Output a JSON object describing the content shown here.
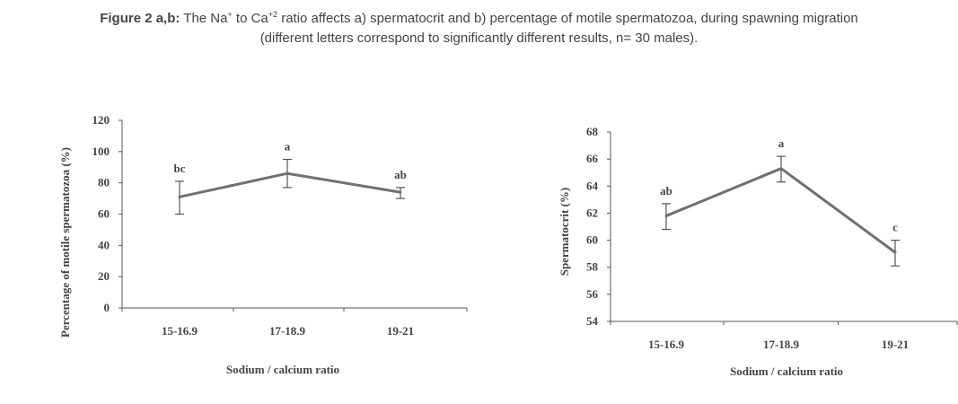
{
  "caption": {
    "label": "Figure 2 a,b:",
    "part1": " The Na",
    "sup1": "+",
    "part2": " to Ca",
    "sup2": "+2",
    "part3": " ratio affects a) spermatocrit and b) percentage of motile spermatozoa, during spawning migration",
    "line2": "(different letters correspond to significantly different results, n= 30 males)."
  },
  "chart_data": [
    {
      "type": "line",
      "title": "",
      "xlabel": "Sodium / calcium ratio",
      "ylabel": "Percentage of motile spermatozoa (%)",
      "categories": [
        "15-16.9",
        "17-18.9",
        "19-21"
      ],
      "values": [
        71,
        86,
        74
      ],
      "error_low": [
        60,
        77,
        70
      ],
      "error_high": [
        81,
        95,
        77
      ],
      "sig_labels": [
        "bc",
        "a",
        "ab"
      ],
      "ylim": [
        0,
        120
      ],
      "yticks": [
        0,
        20,
        40,
        60,
        80,
        100,
        120
      ],
      "ytick_labels": [
        "0",
        "20",
        "40",
        "60",
        "80",
        "100",
        "120"
      ],
      "color": "#707070"
    },
    {
      "type": "line",
      "title": "",
      "xlabel": "Sodium / calcium ratio",
      "ylabel": "Spermatocrit (%)",
      "categories": [
        "15-16.9",
        "17-18.9",
        "19-21"
      ],
      "values": [
        61.8,
        65.3,
        59.1
      ],
      "error_low": [
        60.8,
        64.3,
        58.1
      ],
      "error_high": [
        62.7,
        66.2,
        60.0
      ],
      "sig_labels": [
        "ab",
        "a",
        "c"
      ],
      "ylim": [
        54,
        68
      ],
      "yticks": [
        54,
        56,
        58,
        60,
        62,
        64,
        66,
        68
      ],
      "ytick_labels": [
        "54",
        "56",
        "58",
        "60",
        "62",
        "64",
        "66",
        "68"
      ],
      "color": "#707070"
    }
  ]
}
